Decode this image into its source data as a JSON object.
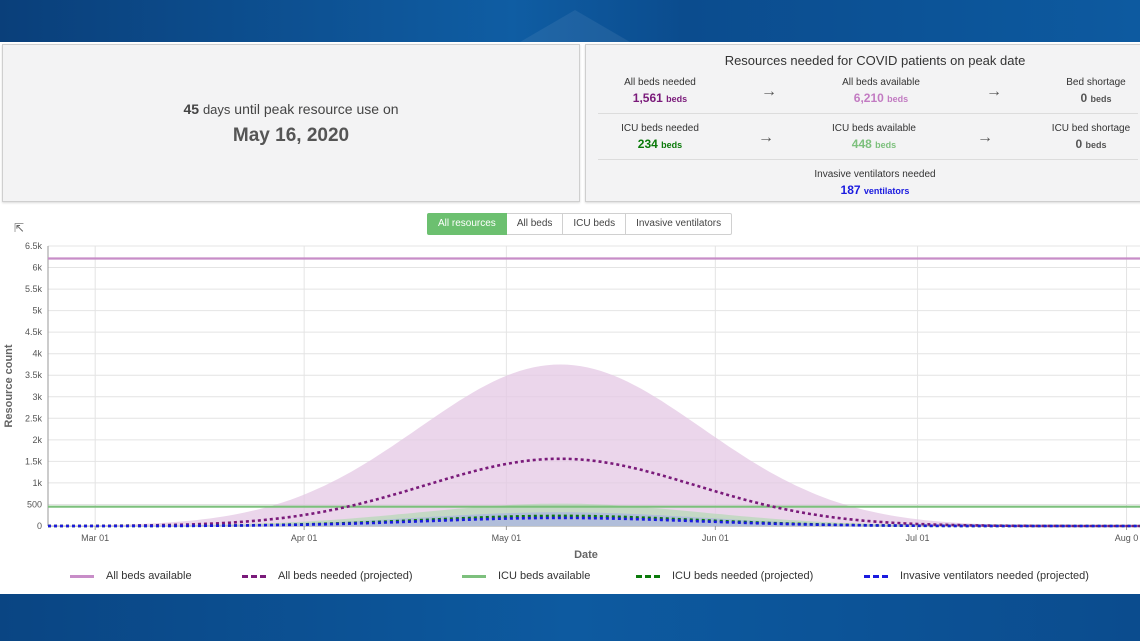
{
  "peak": {
    "days": "45",
    "days_unit": "days",
    "text": "until peak resource use on",
    "date": "May 16, 2020"
  },
  "resources": {
    "title": "Resources needed for COVID patients on peak date",
    "all_beds_needed": {
      "label": "All beds needed",
      "value": "1,561",
      "unit": "beds",
      "color": "#7a1a7a"
    },
    "all_beds_available": {
      "label": "All beds available",
      "value": "6,210",
      "unit": "beds",
      "color": "#c27bc2"
    },
    "bed_shortage": {
      "label": "Bed shortage",
      "value": "0",
      "unit": "beds",
      "color": "#555555"
    },
    "icu_beds_needed": {
      "label": "ICU beds needed",
      "value": "234",
      "unit": "beds",
      "color": "#0a7a0a"
    },
    "icu_beds_available": {
      "label": "ICU beds available",
      "value": "448",
      "unit": "beds",
      "color": "#7dc07d"
    },
    "icu_bed_shortage": {
      "label": "ICU bed shortage",
      "value": "0",
      "unit": "beds",
      "color": "#555555"
    },
    "ventilators": {
      "label": "Invasive ventilators needed",
      "value": "187",
      "unit": "ventilators",
      "color": "#1a1adf"
    },
    "arrow": "→"
  },
  "tabs": [
    "All resources",
    "All beds",
    "ICU beds",
    "Invasive ventilators"
  ],
  "cursor_glyph": "⇱",
  "chart_data": {
    "type": "line",
    "xlabel": "Date",
    "ylabel": "Resource count",
    "x_ticks": [
      "Mar 01",
      "Apr 01",
      "May 01",
      "Jun 01",
      "Jul 01",
      "Aug 0"
    ],
    "y_ticks": [
      "0",
      "500",
      "1k",
      "1.5k",
      "2k",
      "2.5k",
      "3k",
      "3.5k",
      "4k",
      "4.5k",
      "5k",
      "5.5k",
      "6k",
      "6.5k"
    ],
    "ylim": [
      0,
      6500
    ],
    "grid": true,
    "legend_position": "bottom",
    "peak_day_index": 76,
    "series": [
      {
        "name": "All beds available",
        "kind": "constant",
        "value": 6210,
        "color": "#c88dc8",
        "style": "solid"
      },
      {
        "name": "All beds needed (projected)",
        "kind": "curve",
        "peak": 1561,
        "color": "#7a1a7a",
        "style": "dashed",
        "band_upper": 3750,
        "band_color": "#e4c8e4"
      },
      {
        "name": "ICU beds available",
        "kind": "constant",
        "value": 448,
        "color": "#7dc07d",
        "style": "solid"
      },
      {
        "name": "ICU beds needed (projected)",
        "kind": "curve",
        "peak": 234,
        "color": "#0a7a0a",
        "style": "dashed",
        "band_upper": 520,
        "band_color": "#b8d8b8"
      },
      {
        "name": "Invasive ventilators needed (projected)",
        "kind": "curve",
        "peak": 187,
        "color": "#1a1adf",
        "style": "dashed",
        "band_upper": 320,
        "band_color": "#a9b6e0"
      }
    ]
  }
}
